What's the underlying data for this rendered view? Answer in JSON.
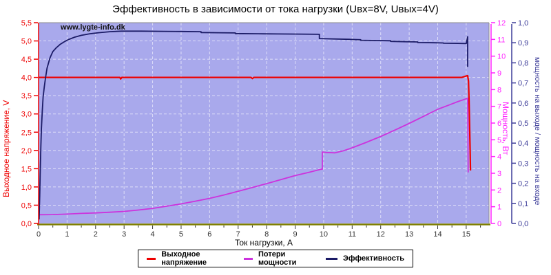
{
  "title": "Эффективность в зависимости от тока нагрузки (Uвх=8V, Uвых=4V)",
  "watermark": "www.lygte-info.dk",
  "chart_data": {
    "type": "line",
    "background_color": "#a9a9ec",
    "grid_color": "#dedef8",
    "baseline_color": "#7f7f00",
    "border_color": "#8a8a8a",
    "x_axis": {
      "label": "Ток нагрузки, А",
      "min": 0,
      "max": 15.8,
      "tick_values": [
        0,
        1,
        2,
        3,
        4,
        5,
        6,
        7,
        8,
        9,
        10,
        11,
        12,
        13,
        14,
        15
      ],
      "tick_labels": [
        "0",
        "1",
        "2",
        "3",
        "4",
        "5",
        "6",
        "7",
        "8",
        "9",
        "10",
        "11",
        "12",
        "13",
        "14",
        "15"
      ],
      "color": "#333333"
    },
    "axes": {
      "voltage": {
        "label": "Выходное напряжение, V",
        "min": 0,
        "max": 5.5,
        "tick_values": [
          0,
          0.5,
          1,
          1.5,
          2,
          2.5,
          3,
          3.5,
          4,
          4.5,
          5,
          5.5
        ],
        "tick_labels": [
          "0,0",
          "0,5",
          "1,0",
          "1,5",
          "2,0",
          "2,5",
          "3,0",
          "3,5",
          "4,0",
          "4,5",
          "5,0",
          "5,5"
        ],
        "color": "#ee0000"
      },
      "power": {
        "label": "Мощность, Вт",
        "min": 0,
        "max": 12,
        "tick_values": [
          0,
          1,
          2,
          3,
          4,
          5,
          6,
          7,
          8,
          9,
          10,
          11,
          12
        ],
        "tick_labels": [
          "0",
          "1",
          "2",
          "3",
          "4",
          "5",
          "6",
          "7",
          "8",
          "9",
          "10",
          "11",
          "12"
        ],
        "color": "#ff22ff"
      },
      "efficiency": {
        "label": "мощность на выходе / мощность на входе",
        "min": 0,
        "max": 1,
        "tick_values": [
          0,
          0.1,
          0.2,
          0.3,
          0.4,
          0.5,
          0.6,
          0.7,
          0.8,
          0.9,
          1.0
        ],
        "tick_labels": [
          "0,0",
          "0,1",
          "0,2",
          "0,3",
          "0,4",
          "0,5",
          "0,6",
          "0,7",
          "0,8",
          "0,9",
          "1,0"
        ],
        "color": "#3c3c99"
      }
    },
    "series": [
      {
        "id": "output-voltage",
        "name": "Выходное напряжение",
        "axis": "voltage",
        "color": "#ee0000",
        "stroke_width": 2.2,
        "points": [
          [
            0,
            4.0
          ],
          [
            2.85,
            4.0
          ],
          [
            2.88,
            3.96
          ],
          [
            2.92,
            4.0
          ],
          [
            7.45,
            4.0
          ],
          [
            7.5,
            3.97
          ],
          [
            7.55,
            4.0
          ],
          [
            14.85,
            4.0
          ],
          [
            15.0,
            4.04
          ],
          [
            15.05,
            4.05
          ],
          [
            15.08,
            3.9
          ],
          [
            15.1,
            3.4
          ],
          [
            15.12,
            2.6
          ],
          [
            15.14,
            1.9
          ],
          [
            15.15,
            1.45
          ]
        ]
      },
      {
        "id": "power-loss",
        "name": "Потери мощности",
        "axis": "power",
        "color": "#cc33dd",
        "stroke_width": 1.8,
        "points": [
          [
            0,
            0.52
          ],
          [
            0.5,
            0.53
          ],
          [
            1,
            0.56
          ],
          [
            1.5,
            0.6
          ],
          [
            2,
            0.63
          ],
          [
            2.5,
            0.67
          ],
          [
            3,
            0.72
          ],
          [
            3.5,
            0.8
          ],
          [
            4,
            0.9
          ],
          [
            4.5,
            1.03
          ],
          [
            5,
            1.17
          ],
          [
            5.5,
            1.33
          ],
          [
            6,
            1.5
          ],
          [
            6.5,
            1.7
          ],
          [
            7,
            1.92
          ],
          [
            7.5,
            2.15
          ],
          [
            8,
            2.38
          ],
          [
            8.5,
            2.62
          ],
          [
            9,
            2.86
          ],
          [
            9.5,
            3.06
          ],
          [
            9.9,
            3.24
          ],
          [
            9.95,
            3.24
          ],
          [
            9.95,
            4.27
          ],
          [
            10.1,
            4.24
          ],
          [
            10.4,
            4.22
          ],
          [
            10.7,
            4.35
          ],
          [
            11,
            4.52
          ],
          [
            11.5,
            4.85
          ],
          [
            12,
            5.2
          ],
          [
            12.5,
            5.58
          ],
          [
            13,
            5.98
          ],
          [
            13.5,
            6.4
          ],
          [
            14,
            6.82
          ],
          [
            14.4,
            7.08
          ],
          [
            14.7,
            7.28
          ],
          [
            15.0,
            7.45
          ],
          [
            15.05,
            7.48
          ],
          [
            15.07,
            3.05
          ]
        ]
      },
      {
        "id": "efficiency",
        "name": "Эффективность",
        "axis": "efficiency",
        "color": "#1b1b66",
        "stroke_width": 1.8,
        "points": [
          [
            0.02,
            0.02
          ],
          [
            0.04,
            0.14
          ],
          [
            0.06,
            0.27
          ],
          [
            0.08,
            0.38
          ],
          [
            0.1,
            0.47
          ],
          [
            0.13,
            0.56
          ],
          [
            0.16,
            0.63
          ],
          [
            0.2,
            0.68
          ],
          [
            0.25,
            0.73
          ],
          [
            0.3,
            0.775
          ],
          [
            0.4,
            0.825
          ],
          [
            0.5,
            0.856
          ],
          [
            0.62,
            0.875
          ],
          [
            0.75,
            0.891
          ],
          [
            0.9,
            0.905
          ],
          [
            1.05,
            0.916
          ],
          [
            1.25,
            0.927
          ],
          [
            1.5,
            0.937
          ],
          [
            1.8,
            0.945
          ],
          [
            2.1,
            0.95
          ],
          [
            2.5,
            0.955
          ],
          [
            2.9,
            0.958
          ],
          [
            3.6,
            0.958
          ],
          [
            4.4,
            0.957
          ],
          [
            5.0,
            0.956
          ],
          [
            5.7,
            0.955
          ],
          [
            5.7,
            0.951
          ],
          [
            6.3,
            0.95
          ],
          [
            6.9,
            0.949
          ],
          [
            6.9,
            0.946
          ],
          [
            7.7,
            0.945
          ],
          [
            8.4,
            0.944
          ],
          [
            9.2,
            0.943
          ],
          [
            9.85,
            0.942
          ],
          [
            9.85,
            0.921
          ],
          [
            10.4,
            0.919
          ],
          [
            10.9,
            0.917
          ],
          [
            11.3,
            0.915
          ],
          [
            11.3,
            0.9125
          ],
          [
            11.9,
            0.911
          ],
          [
            12.35,
            0.91
          ],
          [
            12.35,
            0.907
          ],
          [
            12.9,
            0.905
          ],
          [
            13.3,
            0.904
          ],
          [
            13.3,
            0.901
          ],
          [
            13.9,
            0.9
          ],
          [
            14.2,
            0.899
          ],
          [
            14.2,
            0.8975
          ],
          [
            14.7,
            0.897
          ],
          [
            15.0,
            0.896
          ],
          [
            15.05,
            0.93
          ],
          [
            15.05,
            0.78
          ]
        ]
      }
    ]
  }
}
